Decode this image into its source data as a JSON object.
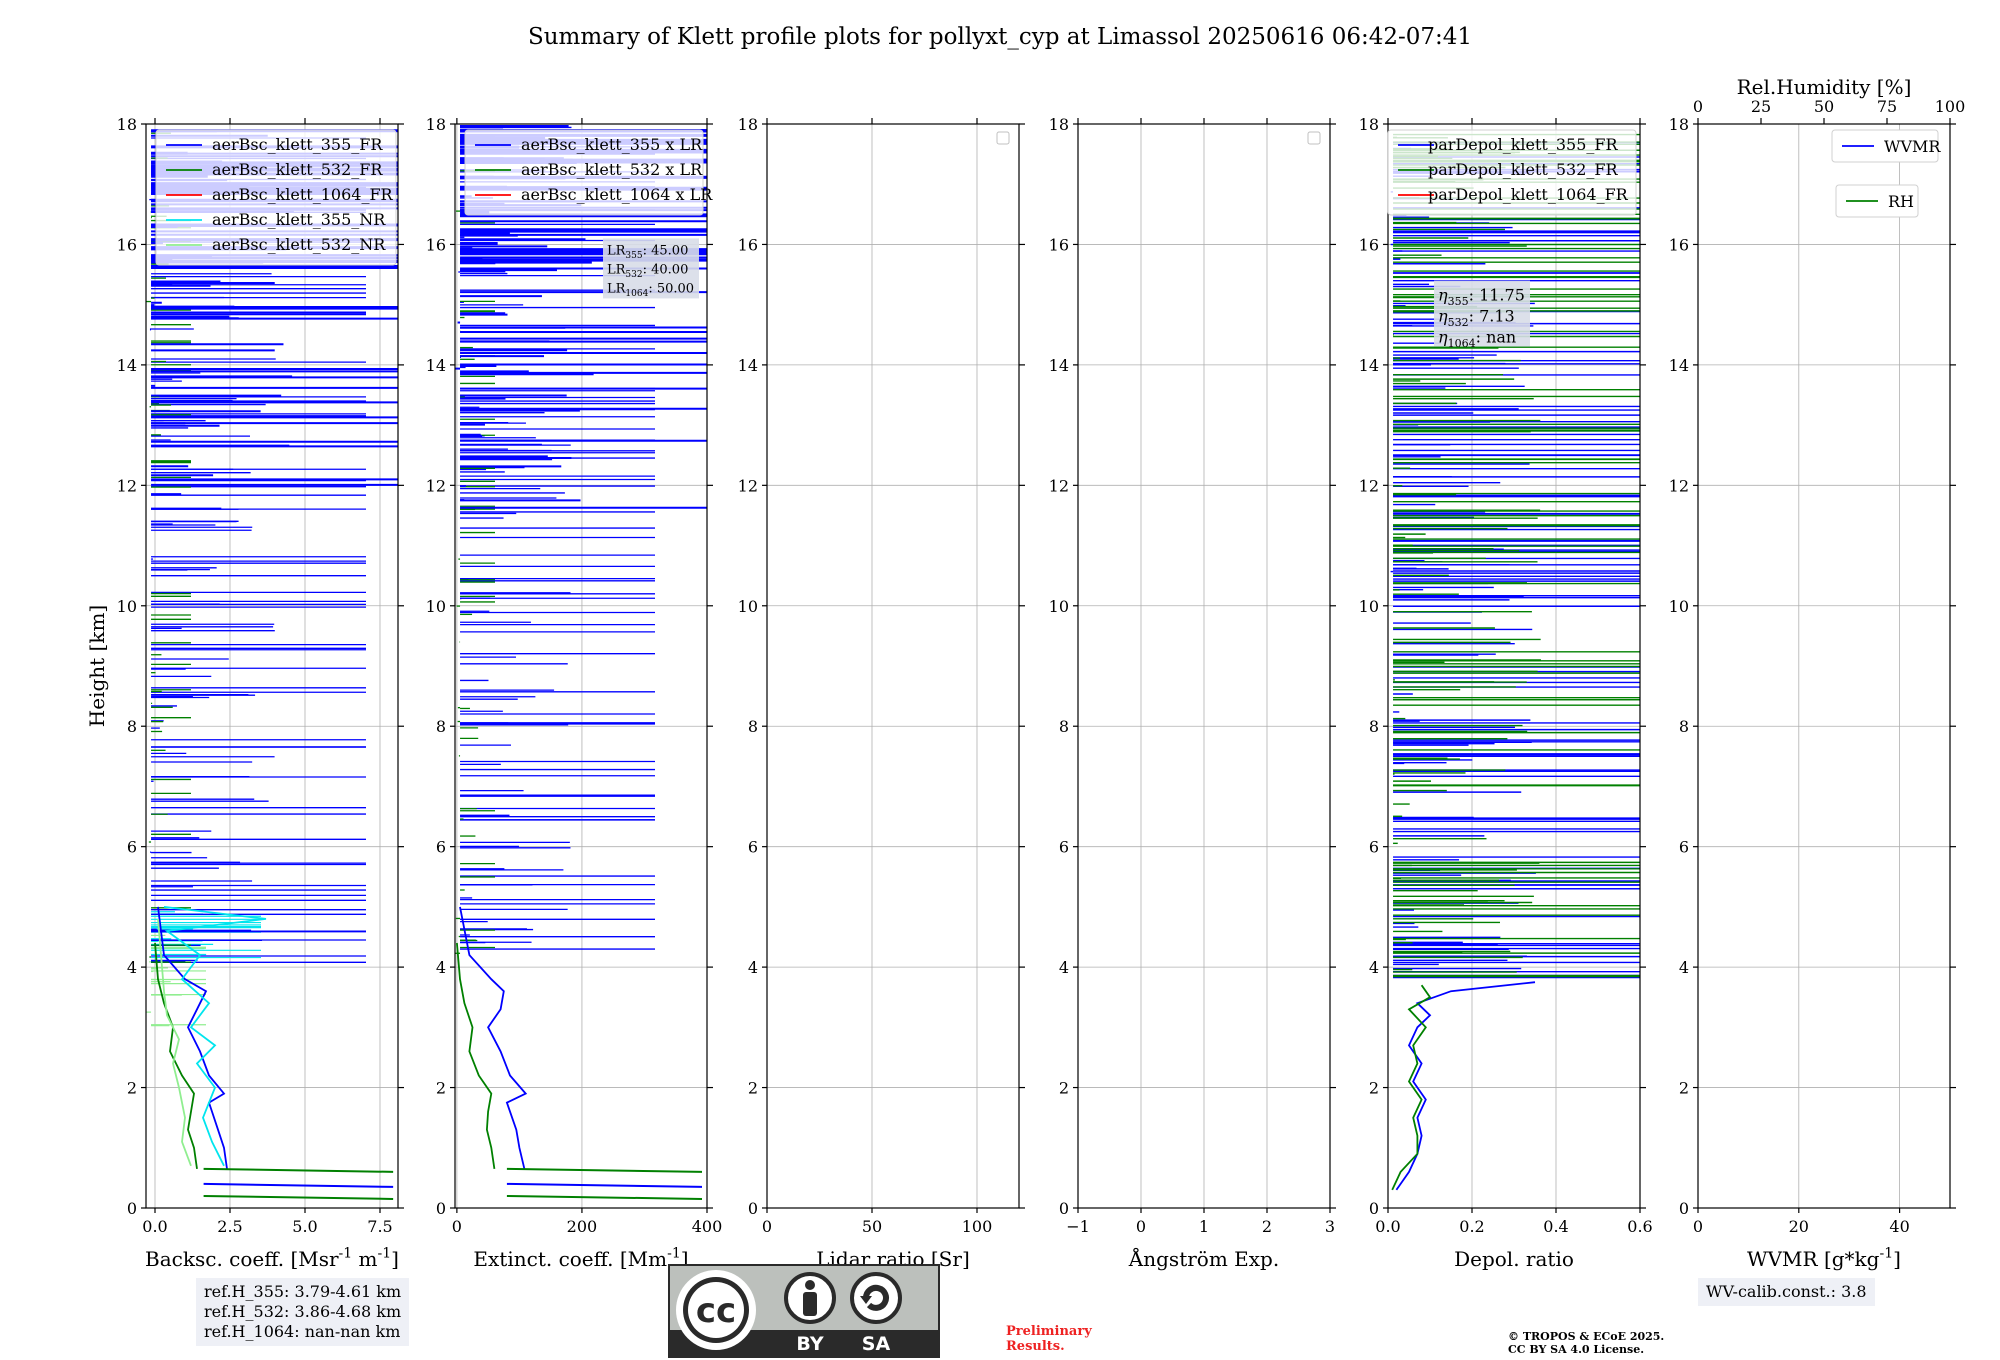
{
  "title": "Summary of Klett profile plots for pollyxt_cyp at Limassol 20250616 06:42-07:41",
  "colors": {
    "b355": "#0000ff",
    "g532": "#008000",
    "r1064": "#ff0000",
    "c355nr": "#00e5ee",
    "lg532nr": "#90ee90",
    "grid": "#b0b0b0"
  },
  "chart_data": [
    {
      "type": "line",
      "panel": "backscatter",
      "xlabel": "Backsc. coeff. [Msr$^{-1}$ m$^{-1}$]",
      "ylabel": "Height [km]",
      "xlim": [
        -0.3,
        8.1
      ],
      "ylim": [
        0,
        18
      ],
      "xticks": [
        0,
        2.5,
        5,
        7.5
      ],
      "xtick_labels": [
        "0.0",
        "2.5",
        "5.0",
        "7.5"
      ],
      "yticks": [
        0,
        2,
        4,
        6,
        8,
        10,
        12,
        14,
        16,
        18
      ],
      "ytick_labels": [
        "0",
        "2",
        "4",
        "6",
        "8",
        "10",
        "12",
        "14",
        "16",
        "18"
      ],
      "grid": true,
      "legend_position": "top",
      "series": [
        {
          "name": "aerBsc_klett_355_FR",
          "color": "#0000ff",
          "x": [
            2.4,
            2.3,
            2.1,
            1.9,
            1.8,
            2.3,
            1.8,
            1.5,
            1.1,
            1.4,
            1.7,
            1.0,
            0.3,
            0.1
          ],
          "y": [
            0.65,
            1.0,
            1.3,
            1.6,
            1.75,
            1.9,
            2.2,
            2.6,
            3.0,
            3.3,
            3.6,
            3.8,
            4.2,
            5.0
          ]
        },
        {
          "name": "aerBsc_klett_532_FR",
          "color": "#008000",
          "x": [
            1.4,
            1.3,
            1.1,
            1.2,
            1.3,
            0.9,
            0.5,
            0.6,
            0.3,
            0.1,
            0.0
          ],
          "y": [
            0.65,
            1.0,
            1.3,
            1.6,
            1.9,
            2.2,
            2.6,
            3.0,
            3.4,
            3.8,
            4.4
          ]
        },
        {
          "name": "aerBsc_klett_1064_FR",
          "color": "#ff0000",
          "x": [],
          "y": []
        },
        {
          "name": "aerBsc_klett_355_NR",
          "color": "#00e5ee",
          "x": [
            2.3,
            1.9,
            1.6,
            2.0,
            1.4,
            2.0,
            1.2,
            1.8,
            0.9,
            1.5,
            0.4,
            3.7,
            0.3
          ],
          "y": [
            0.7,
            1.1,
            1.5,
            2.0,
            2.4,
            2.7,
            3.0,
            3.4,
            3.8,
            4.2,
            4.6,
            4.8,
            5.0
          ]
        },
        {
          "name": "aerBsc_klett_532_NR",
          "color": "#90ee90",
          "x": [
            1.2,
            0.9,
            1.0,
            0.8,
            0.6,
            0.8,
            0.4,
            0.3,
            0.2,
            0.1
          ],
          "y": [
            0.7,
            1.1,
            1.5,
            2.0,
            2.4,
            2.8,
            3.2,
            3.6,
            4.2,
            4.8
          ]
        }
      ]
    },
    {
      "type": "line",
      "panel": "extinction",
      "xlabel": "Extinct. coeff. [Mm$^{-1}$]",
      "xlim": [
        -3,
        400
      ],
      "ylim": [
        0,
        18
      ],
      "xticks": [
        0,
        200,
        400
      ],
      "xtick_labels": [
        "0",
        "200",
        "400"
      ],
      "yticks": [
        0,
        2,
        4,
        6,
        8,
        10,
        12,
        14,
        16,
        18
      ],
      "ytick_labels": [
        "0",
        "2",
        "4",
        "6",
        "8",
        "10",
        "12",
        "14",
        "16",
        "18"
      ],
      "grid": true,
      "legend_position": "top",
      "series": [
        {
          "name": "aerBsc_klett_355 x LR",
          "color": "#0000ff",
          "x": [
            108,
            100,
            95,
            85,
            80,
            110,
            85,
            70,
            50,
            70,
            75,
            55,
            20,
            5
          ],
          "y": [
            0.65,
            1.0,
            1.3,
            1.6,
            1.75,
            1.9,
            2.2,
            2.6,
            3.0,
            3.3,
            3.6,
            3.8,
            4.2,
            5.0
          ]
        },
        {
          "name": "aerBsc_klett_532 x LR",
          "color": "#008000",
          "x": [
            60,
            55,
            48,
            50,
            55,
            35,
            20,
            25,
            12,
            5,
            0
          ],
          "y": [
            0.65,
            1.0,
            1.3,
            1.6,
            1.9,
            2.2,
            2.6,
            3.0,
            3.4,
            3.8,
            4.4
          ]
        },
        {
          "name": "aerBsc_klett_1064 x LR",
          "color": "#ff0000",
          "x": [],
          "y": []
        }
      ]
    },
    {
      "type": "line",
      "panel": "lidar-ratio",
      "xlabel": "Lidar ratio [Sr]",
      "xlim": [
        0,
        120
      ],
      "ylim": [
        0,
        18
      ],
      "xticks": [
        0,
        50,
        100
      ],
      "xtick_labels": [
        "0",
        "50",
        "100"
      ],
      "yticks": [
        0,
        2,
        4,
        6,
        8,
        10,
        12,
        14,
        16,
        18
      ],
      "ytick_labels": [
        "0",
        "2",
        "4",
        "6",
        "8",
        "10",
        "12",
        "14",
        "16",
        "18"
      ],
      "grid": true,
      "legend_position": "top-right",
      "series": []
    },
    {
      "type": "line",
      "panel": "angstrom",
      "xlabel": "Ångström Exp.",
      "xlim": [
        -1,
        3
      ],
      "ylim": [
        0,
        18
      ],
      "xticks": [
        -1,
        0,
        1,
        2,
        3
      ],
      "xtick_labels": [
        "−1",
        "0",
        "1",
        "2",
        "3"
      ],
      "yticks": [
        0,
        2,
        4,
        6,
        8,
        10,
        12,
        14,
        16,
        18
      ],
      "ytick_labels": [
        "0",
        "2",
        "4",
        "6",
        "8",
        "10",
        "12",
        "14",
        "16",
        "18"
      ],
      "grid": true,
      "legend_position": "top-right",
      "series": []
    },
    {
      "type": "line",
      "panel": "depol",
      "xlabel": "Depol. ratio",
      "xlim": [
        0,
        0.6
      ],
      "ylim": [
        0,
        18
      ],
      "xticks": [
        0,
        0.2,
        0.4,
        0.6
      ],
      "xtick_labels": [
        "0.0",
        "0.2",
        "0.4",
        "0.6"
      ],
      "yticks": [
        0,
        2,
        4,
        6,
        8,
        10,
        12,
        14,
        16,
        18
      ],
      "ytick_labels": [
        "0",
        "2",
        "4",
        "6",
        "8",
        "10",
        "12",
        "14",
        "16",
        "18"
      ],
      "grid": true,
      "legend_position": "top-left",
      "series": [
        {
          "name": "parDepol_klett_355_FR",
          "color": "#0000ff",
          "x": [
            0.02,
            0.05,
            0.07,
            0.08,
            0.07,
            0.09,
            0.06,
            0.08,
            0.05,
            0.07,
            0.1,
            0.07,
            0.15,
            0.35
          ],
          "y": [
            0.3,
            0.6,
            0.9,
            1.2,
            1.5,
            1.8,
            2.1,
            2.4,
            2.7,
            3.0,
            3.2,
            3.4,
            3.6,
            3.75
          ]
        },
        {
          "name": "parDepol_klett_532_FR",
          "color": "#008000",
          "x": [
            0.01,
            0.03,
            0.07,
            0.07,
            0.06,
            0.08,
            0.05,
            0.07,
            0.06,
            0.09,
            0.05,
            0.1,
            0.08
          ],
          "y": [
            0.3,
            0.6,
            0.9,
            1.2,
            1.5,
            1.8,
            2.1,
            2.4,
            2.7,
            3.0,
            3.3,
            3.5,
            3.7
          ]
        },
        {
          "name": "parDepol_klett_1064_FR",
          "color": "#ff0000",
          "x": [],
          "y": []
        }
      ]
    },
    {
      "type": "line",
      "panel": "wvmr",
      "xlabel": "WVMR [$g*kg^{-1}$]",
      "xlim": [
        0,
        50
      ],
      "ylim": [
        0,
        18
      ],
      "xticks": [
        0,
        20,
        40
      ],
      "xtick_labels": [
        "0",
        "20",
        "40"
      ],
      "yticks": [
        0,
        2,
        4,
        6,
        8,
        10,
        12,
        14,
        16,
        18
      ],
      "ytick_labels": [
        "0",
        "2",
        "4",
        "6",
        "8",
        "10",
        "12",
        "14",
        "16",
        "18"
      ],
      "top_xlabel": "Rel.Humidity [%]",
      "top_xlim": [
        0,
        100
      ],
      "top_xticks": [
        0,
        25,
        50,
        75,
        100
      ],
      "top_xtick_labels": [
        "0",
        "25",
        "50",
        "75",
        "100"
      ],
      "grid": true,
      "legend_position": "top-right",
      "series": [
        {
          "name": "WVMR",
          "color": "#0000ff",
          "x": [],
          "y": []
        },
        {
          "name": "RH",
          "color": "#008000",
          "x": [],
          "y": []
        }
      ]
    }
  ],
  "lr_box": {
    "lines": [
      "LR$_{355}$: 45.00",
      "LR$_{532}$: 40.00",
      "LR$_{1064}$: 50.00"
    ]
  },
  "eta_box": {
    "lines": [
      "$\\eta_{355}$: 11.75",
      "$\\eta_{532}$: 7.13",
      "$\\eta_{1064}$: nan"
    ]
  },
  "ref_box": {
    "lines": [
      "ref.H_355: 3.79-4.61 km",
      "ref.H_532: 3.86-4.68 km",
      "ref.H_1064: nan-nan km"
    ]
  },
  "wv_calib": "WV-calib.const.: 3.8",
  "cc": {
    "by": "BY",
    "sa": "SA",
    "cc": "cc"
  },
  "preliminary": [
    "Preliminary",
    "Results."
  ],
  "copyright": [
    "© TROPOS & ECoE 2025.",
    "CC BY SA 4.0 License."
  ]
}
